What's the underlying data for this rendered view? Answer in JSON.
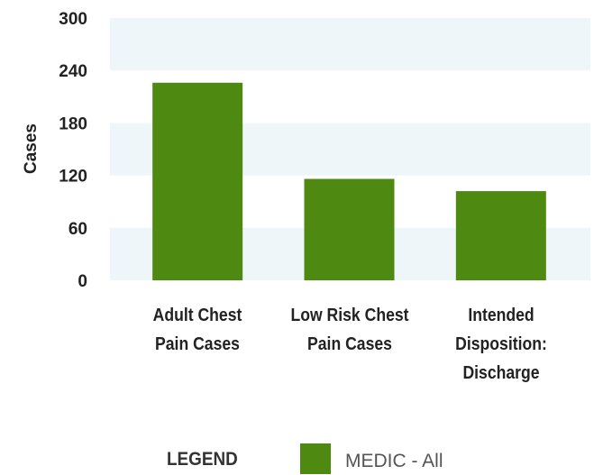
{
  "chart_data": {
    "type": "bar",
    "ylabel": "Cases",
    "categories": [
      "Adult Chest Pain Cases",
      "Low Risk Chest Pain Cases",
      "Intended Disposition: Discharge"
    ],
    "series": [
      {
        "name": "MEDIC - All",
        "color": "#4e8a12",
        "values": [
          226,
          116,
          102
        ]
      }
    ],
    "ylim": [
      0,
      300
    ],
    "yticks": [
      0,
      60,
      120,
      180,
      240,
      300
    ],
    "legend_title": "LEGEND"
  }
}
